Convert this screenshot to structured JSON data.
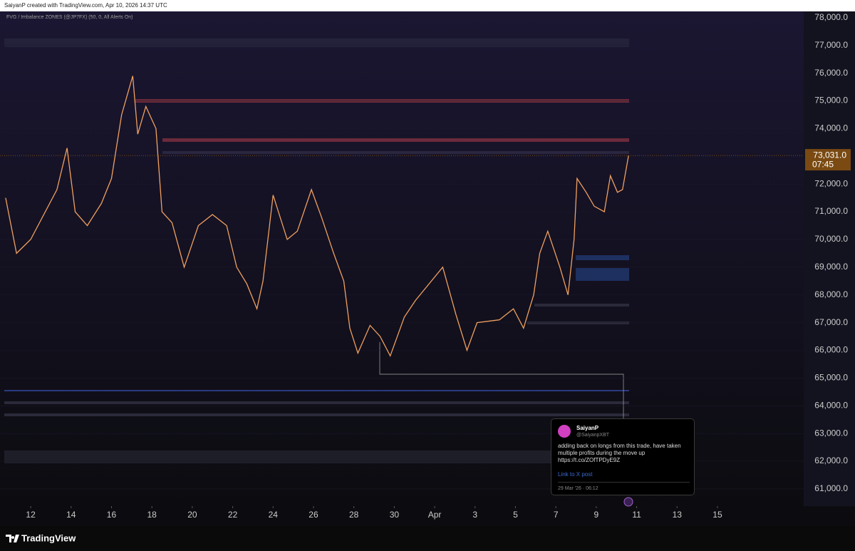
{
  "header": {
    "caption": "SaiyanP created with TradingView.com, Apr 10, 2026 14:37 UTC"
  },
  "indicator": "FVG / Imbalance ZONES (@JP7FX) (50, 0, All Alerts On)",
  "chart_data": {
    "type": "line",
    "color": "#f0a060",
    "x": [
      10.76,
      11.3,
      12,
      13.3,
      13.8,
      14.2,
      14.8,
      15.5,
      16,
      16.5,
      17.05,
      17.3,
      17.7,
      18.2,
      18.5,
      19,
      19.6,
      20.3,
      21,
      21.7,
      22.2,
      22.7,
      23.2,
      23.5,
      24,
      24.7,
      25.2,
      25.9,
      26.4,
      27,
      27.5,
      27.8,
      28.2,
      28.8,
      29.3,
      29.8,
      30.5,
      31.05,
      32.4,
      33.05,
      33.6,
      34.1,
      35.2,
      35.9,
      36.4,
      36.9,
      37.2,
      37.6,
      38.2,
      38.6,
      38.9,
      39.05,
      39.5,
      39.9,
      40.4,
      40.7,
      41.05,
      41.3,
      41.6
    ],
    "values": [
      71500,
      69500,
      70000,
      71800,
      73300,
      71000,
      70500,
      71300,
      72200,
      74500,
      75900,
      73800,
      74800,
      74000,
      71000,
      70600,
      69000,
      70500,
      70900,
      70500,
      69000,
      68400,
      67500,
      68500,
      71600,
      70000,
      70300,
      71800,
      70800,
      69500,
      68500,
      66800,
      65900,
      66900,
      66500,
      65800,
      67200,
      67800,
      69000,
      67300,
      66000,
      67000,
      67100,
      67500,
      66800,
      68000,
      69500,
      70300,
      69000,
      68000,
      70000,
      72200,
      71700,
      71200,
      71000,
      72300,
      71700,
      71800,
      73031
    ],
    "xlim": [
      10.48,
      50.27
    ],
    "xticks": [
      12,
      14,
      16,
      18,
      20,
      22,
      24,
      26,
      28,
      30,
      {
        "value": 32,
        "label": "Apr"
      },
      {
        "value": 34,
        "label": "3"
      },
      {
        "value": 36,
        "label": "5"
      },
      {
        "value": 38,
        "label": "7"
      },
      {
        "value": 40,
        "label": "9"
      },
      {
        "value": 42,
        "label": "11"
      },
      {
        "value": 44,
        "label": "13"
      },
      {
        "value": 46,
        "label": "15"
      }
    ],
    "ylim": [
      60380,
      78640
    ],
    "yticks": [
      {
        "value": 61000,
        "label": "61,000.0"
      },
      {
        "value": 62000,
        "label": "62,000.0"
      },
      {
        "value": 63000,
        "label": "63,000.0"
      },
      {
        "value": 64000,
        "label": "64,000.0"
      },
      {
        "value": 65000,
        "label": "65,000.0"
      },
      {
        "value": 66000,
        "label": "66,000.0"
      },
      {
        "value": 67000,
        "label": "67,000.0"
      },
      {
        "value": 68000,
        "label": "68,000.0"
      },
      {
        "value": 69000,
        "label": "69,000.0"
      },
      {
        "value": 70000,
        "label": "70,000.0"
      },
      {
        "value": 71000,
        "label": "71,000.0"
      },
      {
        "value": 72000,
        "label": "72,000.0"
      },
      {
        "value": 73000,
        "label": "73,000.0"
      },
      {
        "value": 74000,
        "label": "74,000.0"
      },
      {
        "value": 75000,
        "label": "75,000.0"
      },
      {
        "value": 76000,
        "label": "76,000.0"
      },
      {
        "value": 77000,
        "label": "77,000.0"
      },
      {
        "value": 78000,
        "label": "78,000.0"
      }
    ],
    "last_price": {
      "value": 73031,
      "label": "73,031.0"
    },
    "countdown": "07:45"
  },
  "tweet": {
    "name": "SaiyanP",
    "handle": "@SaiyanpXBT",
    "text": "adding back on longs from this trade, have taken multiple profits during the move up https://t.co/ZOfTPDyE9Z",
    "link": "Link to X post",
    "date": "29 Mar '26 · 06:12"
  },
  "footer": {
    "brand": "TradingView"
  }
}
